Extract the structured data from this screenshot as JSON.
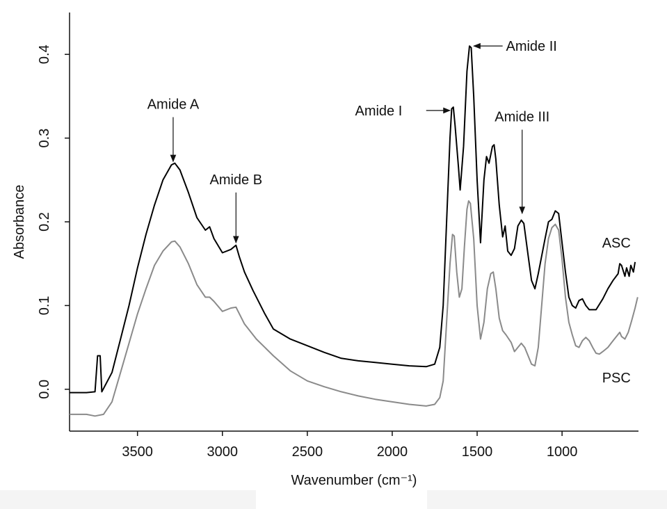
{
  "chart_data": {
    "type": "line",
    "xlabel": "Wavenumber (cm⁻¹)",
    "ylabel": "Absorbance",
    "xlim": [
      3900,
      550
    ],
    "ylim": [
      -0.05,
      0.45
    ],
    "x_reversed": true,
    "x_ticks": [
      3500,
      3000,
      2500,
      2000,
      1500,
      1000
    ],
    "y_ticks": [
      0.0,
      0.1,
      0.2,
      0.3,
      0.4
    ],
    "x_tick_labels": [
      "3500",
      "3000",
      "2500",
      "2000",
      "1500",
      "1000"
    ],
    "y_tick_labels": [
      "0.0",
      "0.1",
      "0.2",
      "0.3",
      "0.4"
    ],
    "grid": false,
    "series": [
      {
        "name": "ASC",
        "color": "#000000",
        "points": [
          [
            3900,
            -0.004
          ],
          [
            3800,
            -0.004
          ],
          [
            3750,
            -0.003
          ],
          [
            3735,
            0.04
          ],
          [
            3720,
            0.04
          ],
          [
            3710,
            -0.003
          ],
          [
            3650,
            0.02
          ],
          [
            3600,
            0.06
          ],
          [
            3550,
            0.1
          ],
          [
            3500,
            0.145
          ],
          [
            3450,
            0.185
          ],
          [
            3400,
            0.22
          ],
          [
            3350,
            0.25
          ],
          [
            3300,
            0.268
          ],
          [
            3280,
            0.27
          ],
          [
            3250,
            0.262
          ],
          [
            3200,
            0.235
          ],
          [
            3150,
            0.205
          ],
          [
            3100,
            0.19
          ],
          [
            3075,
            0.194
          ],
          [
            3050,
            0.18
          ],
          [
            3000,
            0.163
          ],
          [
            2950,
            0.167
          ],
          [
            2920,
            0.172
          ],
          [
            2900,
            0.158
          ],
          [
            2870,
            0.14
          ],
          [
            2820,
            0.118
          ],
          [
            2750,
            0.09
          ],
          [
            2700,
            0.072
          ],
          [
            2600,
            0.06
          ],
          [
            2500,
            0.052
          ],
          [
            2400,
            0.044
          ],
          [
            2300,
            0.037
          ],
          [
            2200,
            0.034
          ],
          [
            2100,
            0.032
          ],
          [
            2000,
            0.03
          ],
          [
            1900,
            0.028
          ],
          [
            1800,
            0.027
          ],
          [
            1750,
            0.03
          ],
          [
            1720,
            0.05
          ],
          [
            1700,
            0.1
          ],
          [
            1680,
            0.2
          ],
          [
            1660,
            0.3
          ],
          [
            1650,
            0.335
          ],
          [
            1640,
            0.337
          ],
          [
            1630,
            0.315
          ],
          [
            1610,
            0.265
          ],
          [
            1600,
            0.238
          ],
          [
            1580,
            0.29
          ],
          [
            1560,
            0.38
          ],
          [
            1545,
            0.41
          ],
          [
            1535,
            0.408
          ],
          [
            1520,
            0.35
          ],
          [
            1500,
            0.25
          ],
          [
            1480,
            0.175
          ],
          [
            1460,
            0.25
          ],
          [
            1445,
            0.278
          ],
          [
            1430,
            0.27
          ],
          [
            1410,
            0.29
          ],
          [
            1400,
            0.292
          ],
          [
            1390,
            0.275
          ],
          [
            1370,
            0.22
          ],
          [
            1350,
            0.182
          ],
          [
            1335,
            0.195
          ],
          [
            1320,
            0.165
          ],
          [
            1300,
            0.16
          ],
          [
            1280,
            0.168
          ],
          [
            1260,
            0.195
          ],
          [
            1240,
            0.202
          ],
          [
            1225,
            0.198
          ],
          [
            1200,
            0.16
          ],
          [
            1180,
            0.13
          ],
          [
            1160,
            0.12
          ],
          [
            1140,
            0.138
          ],
          [
            1100,
            0.18
          ],
          [
            1080,
            0.2
          ],
          [
            1060,
            0.203
          ],
          [
            1040,
            0.213
          ],
          [
            1020,
            0.21
          ],
          [
            1000,
            0.175
          ],
          [
            980,
            0.14
          ],
          [
            960,
            0.11
          ],
          [
            940,
            0.1
          ],
          [
            920,
            0.097
          ],
          [
            900,
            0.106
          ],
          [
            880,
            0.108
          ],
          [
            860,
            0.1
          ],
          [
            840,
            0.095
          ],
          [
            800,
            0.095
          ],
          [
            760,
            0.108
          ],
          [
            730,
            0.12
          ],
          [
            700,
            0.13
          ],
          [
            670,
            0.138
          ],
          [
            660,
            0.15
          ],
          [
            650,
            0.148
          ],
          [
            630,
            0.135
          ],
          [
            620,
            0.145
          ],
          [
            605,
            0.135
          ],
          [
            595,
            0.148
          ],
          [
            580,
            0.14
          ],
          [
            570,
            0.152
          ]
        ]
      },
      {
        "name": "PSC",
        "color": "#8a8a8a",
        "points": [
          [
            3900,
            -0.03
          ],
          [
            3800,
            -0.03
          ],
          [
            3750,
            -0.032
          ],
          [
            3700,
            -0.03
          ],
          [
            3650,
            -0.015
          ],
          [
            3600,
            0.02
          ],
          [
            3550,
            0.055
          ],
          [
            3500,
            0.09
          ],
          [
            3450,
            0.12
          ],
          [
            3400,
            0.148
          ],
          [
            3350,
            0.165
          ],
          [
            3300,
            0.176
          ],
          [
            3280,
            0.177
          ],
          [
            3250,
            0.17
          ],
          [
            3200,
            0.15
          ],
          [
            3150,
            0.125
          ],
          [
            3100,
            0.11
          ],
          [
            3075,
            0.11
          ],
          [
            3050,
            0.105
          ],
          [
            3000,
            0.093
          ],
          [
            2950,
            0.097
          ],
          [
            2920,
            0.098
          ],
          [
            2900,
            0.09
          ],
          [
            2870,
            0.078
          ],
          [
            2800,
            0.06
          ],
          [
            2700,
            0.04
          ],
          [
            2600,
            0.022
          ],
          [
            2500,
            0.01
          ],
          [
            2400,
            0.003
          ],
          [
            2300,
            -0.003
          ],
          [
            2200,
            -0.008
          ],
          [
            2100,
            -0.012
          ],
          [
            2000,
            -0.015
          ],
          [
            1900,
            -0.018
          ],
          [
            1800,
            -0.02
          ],
          [
            1750,
            -0.018
          ],
          [
            1720,
            -0.01
          ],
          [
            1700,
            0.01
          ],
          [
            1680,
            0.08
          ],
          [
            1660,
            0.15
          ],
          [
            1645,
            0.185
          ],
          [
            1635,
            0.183
          ],
          [
            1620,
            0.14
          ],
          [
            1605,
            0.11
          ],
          [
            1590,
            0.12
          ],
          [
            1575,
            0.17
          ],
          [
            1560,
            0.215
          ],
          [
            1550,
            0.225
          ],
          [
            1540,
            0.222
          ],
          [
            1520,
            0.18
          ],
          [
            1500,
            0.1
          ],
          [
            1480,
            0.06
          ],
          [
            1460,
            0.08
          ],
          [
            1440,
            0.12
          ],
          [
            1420,
            0.138
          ],
          [
            1405,
            0.14
          ],
          [
            1390,
            0.12
          ],
          [
            1370,
            0.085
          ],
          [
            1350,
            0.07
          ],
          [
            1330,
            0.065
          ],
          [
            1300,
            0.056
          ],
          [
            1280,
            0.045
          ],
          [
            1260,
            0.05
          ],
          [
            1240,
            0.055
          ],
          [
            1220,
            0.05
          ],
          [
            1200,
            0.04
          ],
          [
            1180,
            0.03
          ],
          [
            1160,
            0.028
          ],
          [
            1140,
            0.05
          ],
          [
            1120,
            0.1
          ],
          [
            1100,
            0.15
          ],
          [
            1080,
            0.18
          ],
          [
            1060,
            0.193
          ],
          [
            1040,
            0.197
          ],
          [
            1020,
            0.19
          ],
          [
            1000,
            0.155
          ],
          [
            980,
            0.11
          ],
          [
            960,
            0.08
          ],
          [
            940,
            0.065
          ],
          [
            920,
            0.052
          ],
          [
            900,
            0.05
          ],
          [
            880,
            0.058
          ],
          [
            860,
            0.062
          ],
          [
            840,
            0.058
          ],
          [
            820,
            0.05
          ],
          [
            800,
            0.043
          ],
          [
            780,
            0.042
          ],
          [
            760,
            0.045
          ],
          [
            730,
            0.05
          ],
          [
            700,
            0.058
          ],
          [
            680,
            0.063
          ],
          [
            660,
            0.068
          ],
          [
            650,
            0.063
          ],
          [
            630,
            0.06
          ],
          [
            610,
            0.068
          ],
          [
            590,
            0.082
          ],
          [
            570,
            0.097
          ],
          [
            555,
            0.11
          ]
        ]
      }
    ],
    "annotations": [
      {
        "text": "Amide A",
        "arrow": "down",
        "x": 3290,
        "y_tip": 0.272,
        "y_text": 0.335
      },
      {
        "text": "Amide B",
        "arrow": "down",
        "x": 2920,
        "y_tip": 0.175,
        "y_text": 0.245
      },
      {
        "text": "Amide I",
        "arrow": "right",
        "x_tip": 1660,
        "x_from": 1800,
        "y": 0.333,
        "x_text": 2080
      },
      {
        "text": "Amide II",
        "arrow": "left",
        "x_tip": 1520,
        "x_from": 1350,
        "y": 0.41,
        "x_text": 1180
      },
      {
        "text": "Amide III",
        "arrow": "down",
        "x": 1235,
        "y_tip": 0.21,
        "y_text": 0.32
      }
    ],
    "series_labels": [
      {
        "text": "ASC",
        "x": 680,
        "y": 0.175
      },
      {
        "text": "PSC",
        "x": 680,
        "y": 0.014
      }
    ]
  }
}
